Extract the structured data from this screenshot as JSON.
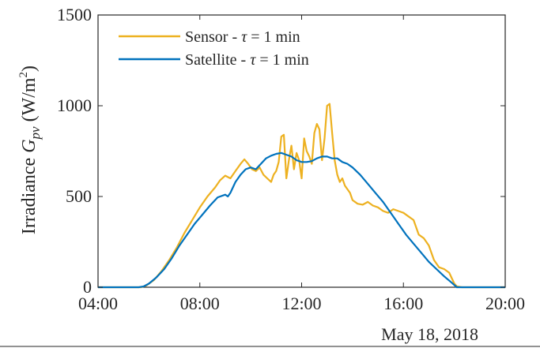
{
  "chart_data": {
    "type": "line",
    "ylabel": {
      "prefix": "Irradiance ",
      "symbol": "G",
      "subscript": "pv",
      "unit_open": " (W/m",
      "unit_sup": "2",
      "unit_close": ")"
    },
    "xlabel_date": "May 18, 2018",
    "x_unit": "hour of day",
    "xlim": [
      4,
      20
    ],
    "ylim": [
      0,
      1500
    ],
    "x_ticks": [
      4,
      8,
      12,
      16,
      20
    ],
    "x_tick_labels": [
      "04:00",
      "08:00",
      "12:00",
      "16:00",
      "20:00"
    ],
    "y_ticks": [
      0,
      500,
      1000,
      1500
    ],
    "y_tick_labels": [
      "0",
      "500",
      "1000",
      "1500"
    ],
    "grid": false,
    "legend_position": "top-left",
    "series": [
      {
        "name": "Sensor",
        "legend_prefix": "Sensor - ",
        "legend_tau": "τ",
        "legend_suffix": " = 1 min",
        "color": "#EDB120",
        "x": [
          4.0,
          5.7,
          5.9,
          6.2,
          6.5,
          6.8,
          7.1,
          7.4,
          7.7,
          8.0,
          8.3,
          8.6,
          8.8,
          9.0,
          9.2,
          9.4,
          9.6,
          9.75,
          9.9,
          10.05,
          10.2,
          10.35,
          10.5,
          10.65,
          10.8,
          10.9,
          11.0,
          11.1,
          11.2,
          11.3,
          11.4,
          11.5,
          11.6,
          11.7,
          11.8,
          11.9,
          12.0,
          12.1,
          12.2,
          12.3,
          12.4,
          12.5,
          12.6,
          12.7,
          12.8,
          12.9,
          13.0,
          13.1,
          13.2,
          13.3,
          13.4,
          13.5,
          13.6,
          13.7,
          13.8,
          13.9,
          14.0,
          14.2,
          14.4,
          14.6,
          14.8,
          15.0,
          15.2,
          15.4,
          15.6,
          15.8,
          16.0,
          16.2,
          16.4,
          16.6,
          16.8,
          17.0,
          17.2,
          17.4,
          17.6,
          17.8,
          18.0,
          18.1,
          18.3,
          20.0
        ],
        "y": [
          0,
          0,
          10,
          40,
          90,
          150,
          220,
          300,
          370,
          440,
          500,
          550,
          590,
          615,
          600,
          640,
          680,
          705,
          680,
          650,
          640,
          660,
          620,
          600,
          580,
          620,
          640,
          690,
          830,
          840,
          600,
          700,
          780,
          650,
          740,
          700,
          600,
          820,
          750,
          720,
          680,
          850,
          900,
          870,
          700,
          820,
          1000,
          1010,
          850,
          700,
          620,
          580,
          600,
          560,
          540,
          520,
          480,
          460,
          455,
          470,
          450,
          440,
          420,
          410,
          430,
          420,
          410,
          390,
          370,
          290,
          270,
          230,
          150,
          110,
          100,
          80,
          20,
          5,
          0,
          0
        ]
      },
      {
        "name": "Satellite",
        "legend_prefix": "Satellite - ",
        "legend_tau": "τ",
        "legend_suffix": " = 1 min",
        "color": "#0072BD",
        "x": [
          4.0,
          5.6,
          5.8,
          6.0,
          6.3,
          6.6,
          6.9,
          7.2,
          7.5,
          7.8,
          8.1,
          8.4,
          8.7,
          9.0,
          9.1,
          9.2,
          9.4,
          9.6,
          9.8,
          10.0,
          10.2,
          10.4,
          10.6,
          10.8,
          11.0,
          11.2,
          11.4,
          11.6,
          11.8,
          12.0,
          12.2,
          12.4,
          12.6,
          12.8,
          13.0,
          13.2,
          13.4,
          13.6,
          13.8,
          14.0,
          14.3,
          14.6,
          14.9,
          15.2,
          15.5,
          15.8,
          16.1,
          16.4,
          16.7,
          17.0,
          17.3,
          17.6,
          17.9,
          18.1,
          20.0
        ],
        "y": [
          0,
          0,
          5,
          20,
          55,
          100,
          160,
          230,
          290,
          350,
          400,
          450,
          495,
          510,
          500,
          520,
          580,
          620,
          650,
          660,
          650,
          680,
          710,
          725,
          735,
          740,
          730,
          720,
          700,
          690,
          690,
          695,
          710,
          720,
          720,
          710,
          710,
          690,
          680,
          660,
          620,
          570,
          520,
          470,
          410,
          350,
          290,
          240,
          190,
          140,
          100,
          60,
          25,
          0,
          0
        ]
      }
    ]
  }
}
